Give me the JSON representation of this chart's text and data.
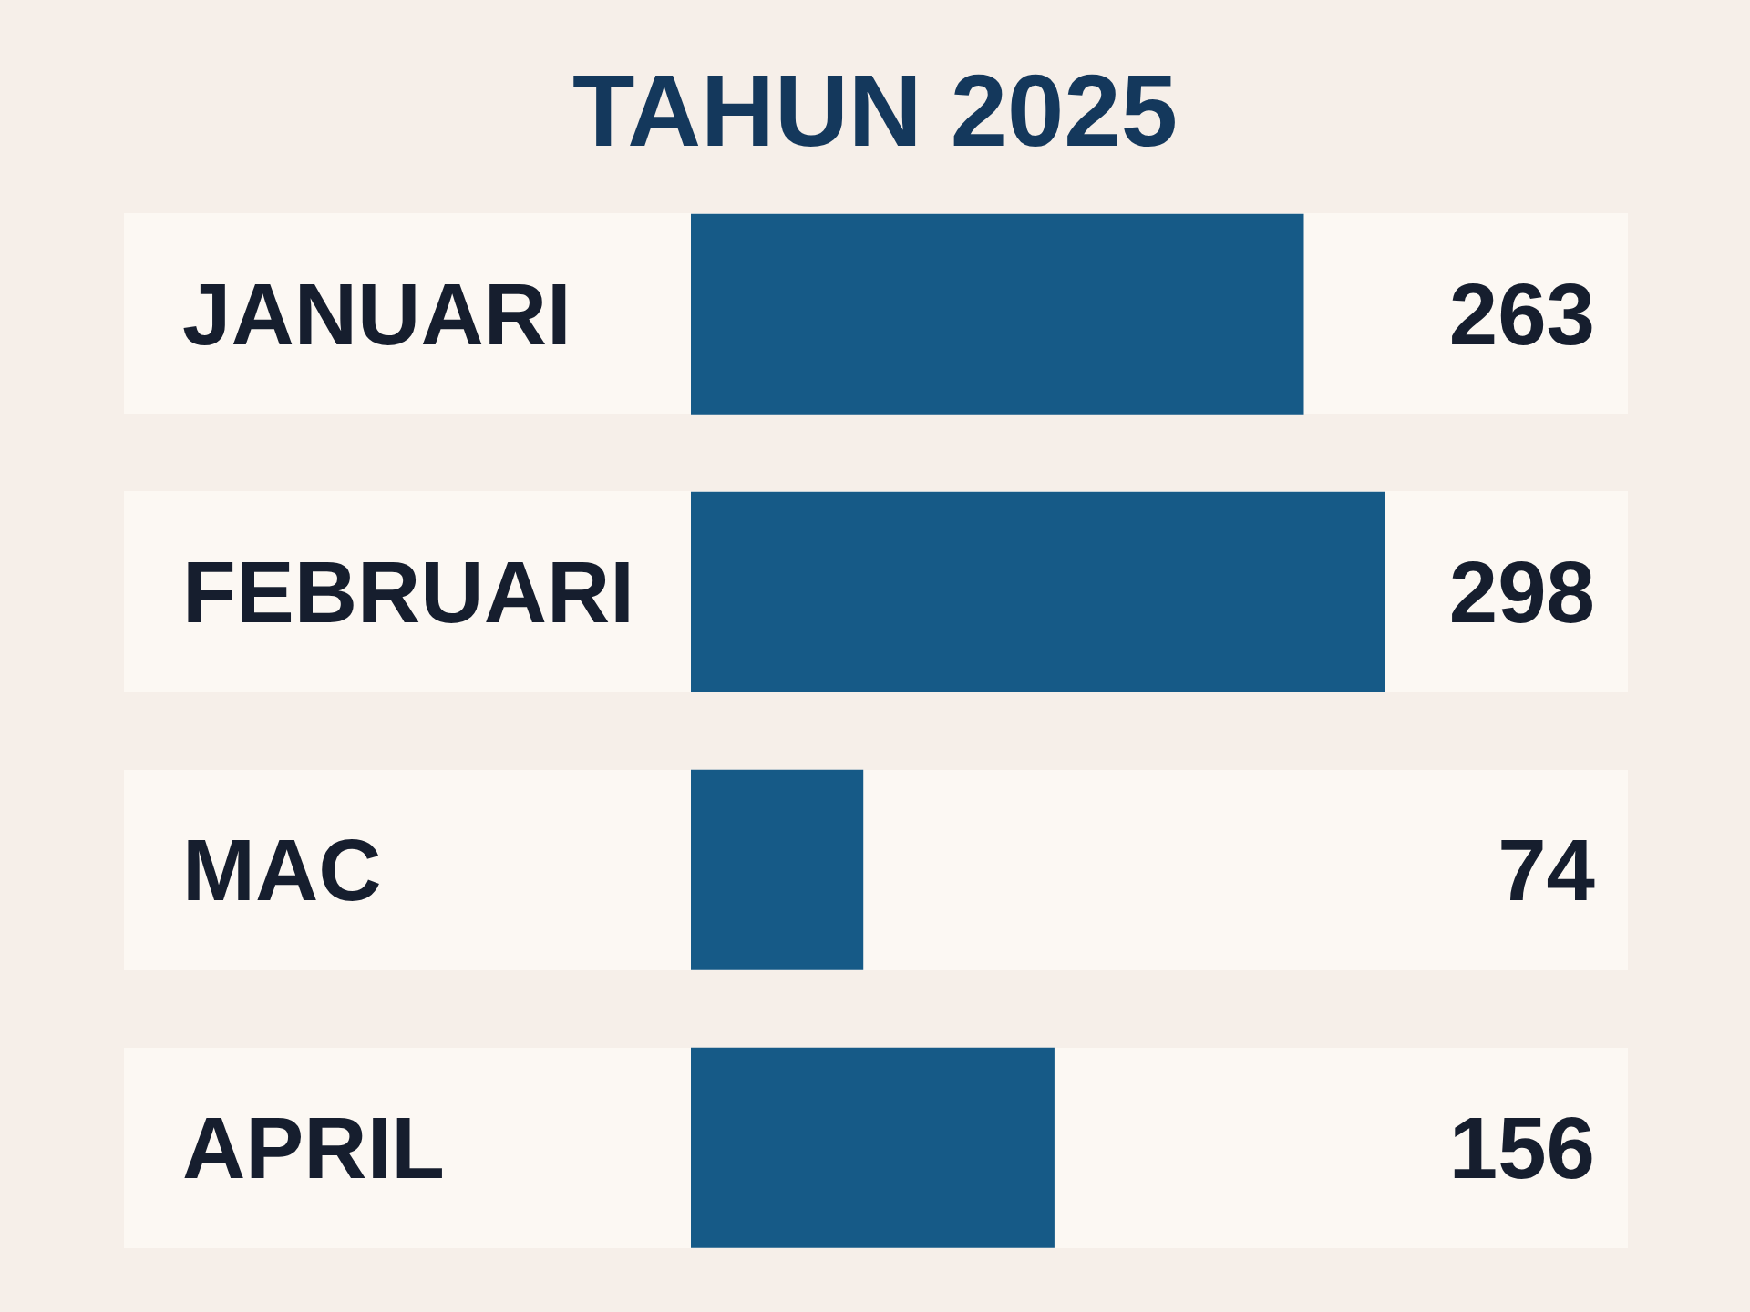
{
  "chart_data": {
    "type": "bar",
    "orientation": "horizontal",
    "title": "TAHUN 2025",
    "categories": [
      "JANUARI",
      "FEBRUARI",
      "MAC",
      "APRIL"
    ],
    "values": [
      263,
      298,
      74,
      156
    ],
    "color": "#165a87",
    "data_labels": true,
    "tick_labels": "y"
  }
}
